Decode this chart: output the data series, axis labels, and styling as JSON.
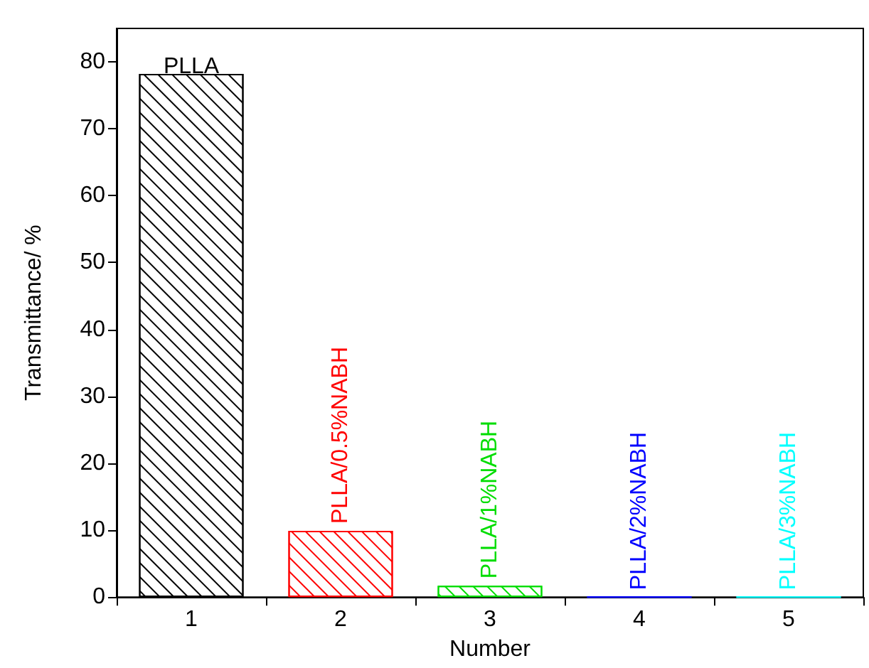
{
  "chart_data": {
    "type": "bar",
    "xlabel": "Number",
    "ylabel": "Transmittance/ %",
    "categories": [
      "1",
      "2",
      "3",
      "4",
      "5"
    ],
    "values": [
      78.2,
      9.9,
      1.7,
      0,
      0
    ],
    "colors": [
      "#000000",
      "#ff0000",
      "#00dd00",
      "#0000ff",
      "#00ffff"
    ],
    "ylim": [
      0,
      85
    ],
    "yticks": [
      0,
      10,
      20,
      30,
      40,
      50,
      60,
      70,
      80
    ],
    "annotations": [
      {
        "text": "PLLA",
        "x": "1",
        "y": 78.2
      },
      {
        "text": "PLLA/0.5%NABH",
        "x": "2",
        "y": 9.9
      },
      {
        "text": "PLLA/1%NABH",
        "x": "3",
        "y": 1.7
      },
      {
        "text": "PLLA/2%NABH",
        "x": "4",
        "y": 0
      },
      {
        "text": "PLLA/3%NABH",
        "x": "5",
        "y": 0
      }
    ],
    "grid": false
  }
}
